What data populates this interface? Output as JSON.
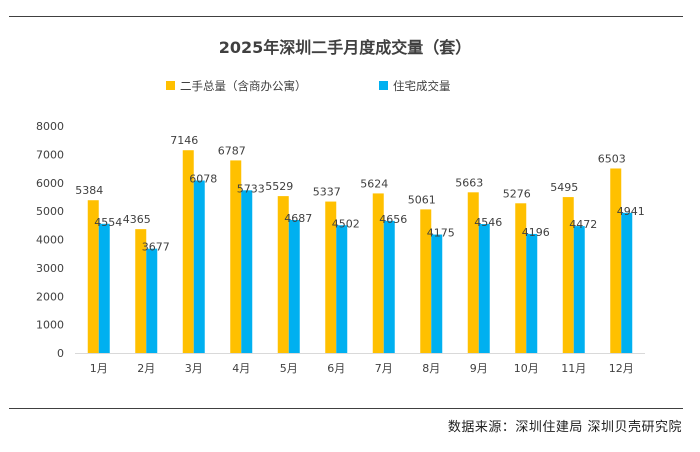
{
  "colors": {
    "primary": "#FFC000",
    "secondary": "#00B0F0",
    "text": "#404040",
    "axis": "#D9D9D9"
  },
  "source_text": "数据来源：深圳住建局   深圳贝壳研究院",
  "chart_data": {
    "type": "bar",
    "title": "2025年深圳二手月度成交量（套）",
    "categories": [
      "1月",
      "2月",
      "3月",
      "4月",
      "5月",
      "6月",
      "7月",
      "8月",
      "9月",
      "10月",
      "11月",
      "12月"
    ],
    "series": [
      {
        "name": "二手总量（含商办公寓）",
        "color": "#FFC000",
        "values": [
          5384,
          4365,
          7146,
          6787,
          5529,
          5337,
          5624,
          5061,
          5663,
          5276,
          5495,
          6503
        ]
      },
      {
        "name": "住宅成交量",
        "color": "#00B0F0",
        "values": [
          4554,
          3677,
          6078,
          5733,
          4687,
          4502,
          4656,
          4175,
          4546,
          4196,
          4472,
          4941
        ]
      }
    ],
    "yticks": [
      0,
      1000,
      2000,
      3000,
      4000,
      5000,
      6000,
      7000,
      8000
    ],
    "ylim": [
      0,
      8000
    ],
    "xlabel": "",
    "ylabel": "",
    "grid": false,
    "legend_position": "top"
  }
}
